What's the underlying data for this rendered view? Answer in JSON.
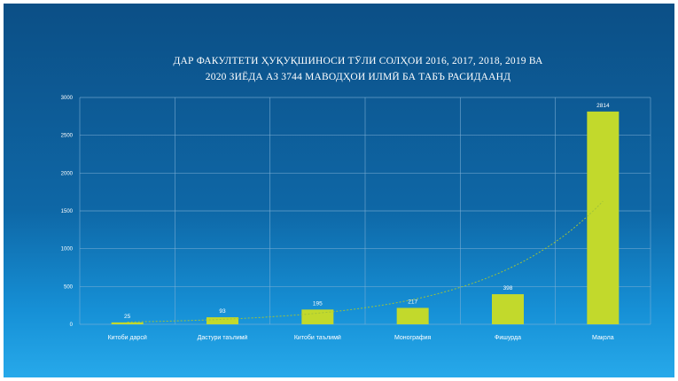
{
  "chart_data": {
    "type": "bar",
    "title": "ДАР ФАКУЛТЕТИ ҲУҚУҚШИНОСИ ТӮЛИ СОЛҲОИ 2016, 2017, 2018, 2019 ВА\n2020 ЗИЁДА АЗ 3744 МАВОДҲОИ ИЛМӢ БА ТАБЪ РАСИДААНД",
    "categories": [
      "Китоби дарсӣ",
      "Дастури таълимӣ",
      "Китоби таълимӣ",
      "Монография",
      "Фишурда",
      "Мақола"
    ],
    "values": [
      25,
      93,
      195,
      217,
      398,
      2814
    ],
    "data_labels": [
      "25",
      "93",
      "195",
      "217",
      "398",
      "2814"
    ],
    "yticks": [
      0,
      500,
      1000,
      1500,
      2000,
      2500,
      3000
    ],
    "ylim": [
      0,
      3000
    ],
    "grid": true,
    "trendline": "exponential",
    "colors": {
      "bar": "#c2d92c",
      "trend": "#9fc23a",
      "grid": "#7fb0d6"
    }
  }
}
